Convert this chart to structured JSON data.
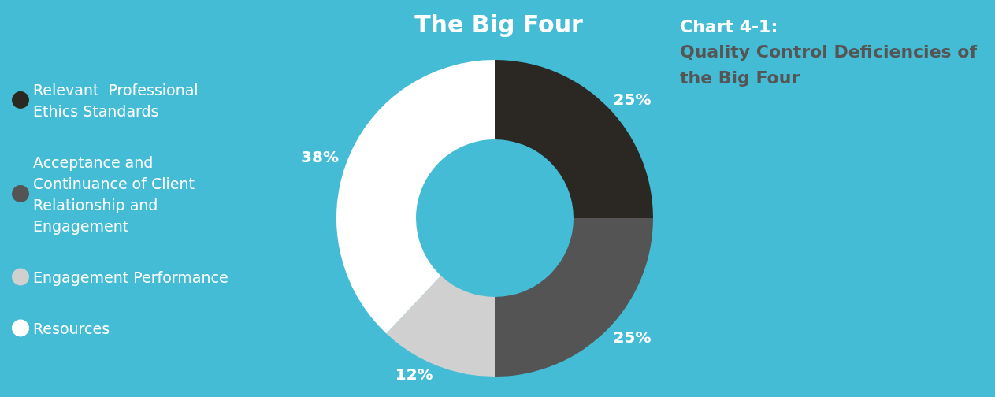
{
  "chart_data": {
    "type": "donut",
    "title": "The Big Four",
    "annotations": [
      "Chart 4-1:",
      "Quality Control Deficiencies of the Big Four"
    ],
    "categories": [
      "Relevant  Professional Ethics Standards",
      "Acceptance and Continuance of Client Relationship and Engagement",
      "Engagement Performance",
      "Resources"
    ],
    "values": [
      25,
      25,
      12,
      38
    ],
    "colors": [
      "#2b2722",
      "#545454",
      "#d0d0d0",
      "#ffffff"
    ],
    "value_labels": [
      "25%",
      "25%",
      "12%",
      "38%"
    ],
    "legend": "left"
  }
}
